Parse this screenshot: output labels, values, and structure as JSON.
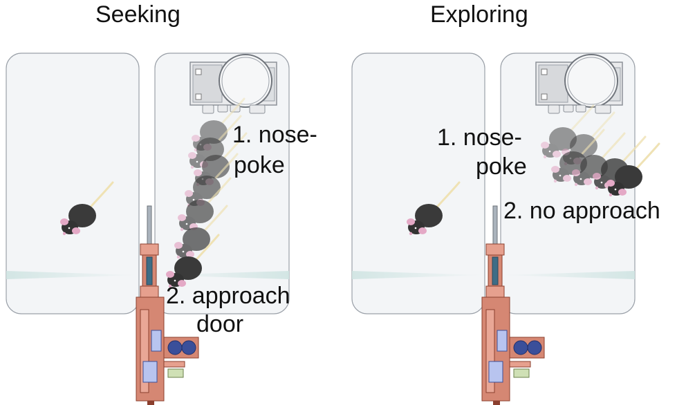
{
  "panels": [
    {
      "title": "Seeking",
      "label1": [
        "1. nose-",
        "poke"
      ],
      "label2": [
        "2. approach",
        "door"
      ]
    },
    {
      "title": "Exploring",
      "label1": [
        "1. nose-",
        "poke"
      ],
      "label2": [
        "2. no approach"
      ]
    }
  ],
  "colors": {
    "chamber_fill": "#f3f5f7",
    "chamber_stroke": "#9aa0a8",
    "light_beam": "#cfe4e2",
    "door_frame": "#d58773",
    "motor_blue": "#3a4f9a",
    "mouse_body": "#333333",
    "mouse_ear": "#e4a9c6",
    "tail": "#efe2b4"
  },
  "icons": [
    "nose-poke-device-icon",
    "mouse-icon",
    "door-mechanism-icon"
  ]
}
